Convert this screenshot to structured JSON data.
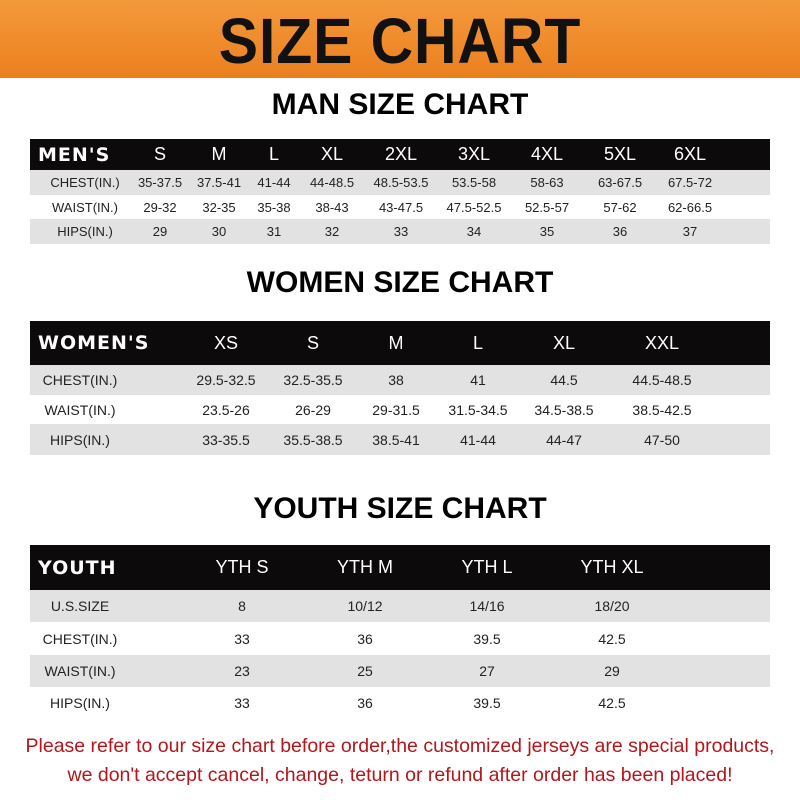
{
  "banner": {
    "title": "SIZE CHART",
    "color": "#ee8a2a"
  },
  "men": {
    "title": "MAN SIZE CHART",
    "header": [
      "MEN'S",
      "S",
      "M",
      "L",
      "XL",
      "2XL",
      "3XL",
      "4XL",
      "5XL",
      "6XL"
    ],
    "rows": [
      [
        "CHEST(IN.)",
        "35-37.5",
        "37.5-41",
        "41-44",
        "44-48.5",
        "48.5-53.5",
        "53.5-58",
        "58-63",
        "63-67.5",
        "67.5-72"
      ],
      [
        "WAIST(IN.)",
        "29-32",
        "32-35",
        "35-38",
        "38-43",
        "43-47.5",
        "47.5-52.5",
        "52.5-57",
        "57-62",
        "62-66.5"
      ],
      [
        "HIPS(IN.)",
        "29",
        "30",
        "31",
        "32",
        "33",
        "34",
        "35",
        "36",
        "37"
      ]
    ]
  },
  "women": {
    "title": "WOMEN SIZE CHART",
    "header": [
      "WOMEN'S",
      "XS",
      "S",
      "M",
      "L",
      "XL",
      "XXL"
    ],
    "rows": [
      [
        "CHEST(IN.)",
        "29.5-32.5",
        "32.5-35.5",
        "38",
        "41",
        "44.5",
        "44.5-48.5"
      ],
      [
        "WAIST(IN.)",
        "23.5-26",
        "26-29",
        "29-31.5",
        "31.5-34.5",
        "34.5-38.5",
        "38.5-42.5"
      ],
      [
        "HIPS(IN.)",
        "33-35.5",
        "35.5-38.5",
        "38.5-41",
        "41-44",
        "44-47",
        "47-50"
      ]
    ]
  },
  "youth": {
    "title": "YOUTH SIZE CHART",
    "header": [
      "YOUTH",
      "YTH S",
      "YTH M",
      "YTH L",
      "YTH XL"
    ],
    "rows": [
      [
        "U.S.SIZE",
        "8",
        "10/12",
        "14/16",
        "18/20"
      ],
      [
        "CHEST(IN.)",
        "33",
        "36",
        "39.5",
        "42.5"
      ],
      [
        "WAIST(IN.)",
        "23",
        "25",
        "27",
        "29"
      ],
      [
        "HIPS(IN.)",
        "33",
        "36",
        "39.5",
        "42.5"
      ]
    ]
  },
  "footer": {
    "line1": "Please refer to our size chart before order,the customized jerseys are special products,",
    "line2": "we don't accept cancel, change, teturn or refund after order has been placed!",
    "color": "#b4161b"
  }
}
